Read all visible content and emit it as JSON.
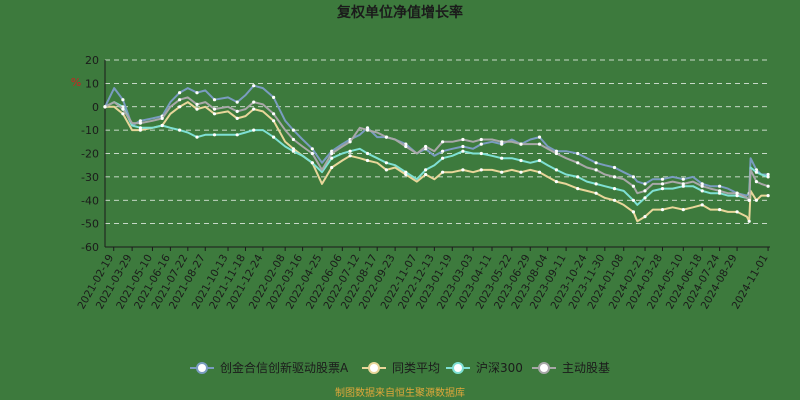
{
  "chart_data": {
    "type": "line",
    "title": "复权单位净值增长率",
    "ylabel": "%",
    "ylim": [
      -60,
      20
    ],
    "yticks": [
      20,
      10,
      0,
      -10,
      -20,
      -30,
      -40,
      -50,
      -60
    ],
    "x_range": [
      "2021-02-01",
      "2024-11-05"
    ],
    "x_ticks": [
      "2021-02-19",
      "2021-03-29",
      "2021-05-10",
      "2021-06-16",
      "2021-07-22",
      "2021-08-27",
      "2021-10-13",
      "2021-11-18",
      "2021-12-24",
      "2022-02-08",
      "2022-03-16",
      "2022-04-25",
      "2022-06-06",
      "2022-07-12",
      "2022-08-17",
      "2022-09-23",
      "2022-11-07",
      "2022-12-13",
      "2023-01-19",
      "2023-03-03",
      "2023-04-11",
      "2023-05-22",
      "2023-06-29",
      "2023-08-04",
      "2023-09-11",
      "2023-10-24",
      "2023-11-30",
      "2024-01-08",
      "2024-02-21",
      "2024-03-28",
      "2024-05-10",
      "2024-06-18",
      "2024-07-24",
      "2024-08-29",
      "2024-11-01"
    ],
    "grid": true,
    "legend_position": "bottom",
    "x": [
      "2021-02-01",
      "2021-02-20",
      "2021-03-10",
      "2021-03-29",
      "2021-04-15",
      "2021-05-10",
      "2021-05-30",
      "2021-06-16",
      "2021-07-05",
      "2021-07-22",
      "2021-08-10",
      "2021-08-27",
      "2021-09-15",
      "2021-10-13",
      "2021-11-01",
      "2021-11-18",
      "2021-12-05",
      "2021-12-24",
      "2022-01-15",
      "2022-02-08",
      "2022-02-25",
      "2022-03-16",
      "2022-04-05",
      "2022-04-25",
      "2022-05-15",
      "2022-06-06",
      "2022-06-22",
      "2022-07-12",
      "2022-07-28",
      "2022-08-17",
      "2022-09-05",
      "2022-09-23",
      "2022-10-15",
      "2022-11-07",
      "2022-11-25",
      "2022-12-13",
      "2022-12-30",
      "2023-01-19",
      "2023-02-10",
      "2023-03-03",
      "2023-03-20",
      "2023-04-11",
      "2023-05-01",
      "2023-05-22",
      "2023-06-10",
      "2023-06-29",
      "2023-07-18",
      "2023-08-04",
      "2023-08-22",
      "2023-09-11",
      "2023-10-05",
      "2023-10-24",
      "2023-11-12",
      "2023-11-30",
      "2023-12-20",
      "2024-01-08",
      "2024-01-28",
      "2024-02-05",
      "2024-02-21",
      "2024-03-08",
      "2024-03-28",
      "2024-04-18",
      "2024-05-10",
      "2024-05-30",
      "2024-06-18",
      "2024-07-05",
      "2024-07-24",
      "2024-08-10",
      "2024-08-29",
      "2024-09-18",
      "2024-09-23",
      "2024-09-26",
      "2024-10-08",
      "2024-10-18",
      "2024-11-01"
    ],
    "series": [
      {
        "name": "创金合信创新驱动股票A",
        "color": "#7a9cc0",
        "values": [
          0,
          8,
          3,
          -8,
          -6,
          -5,
          -4,
          2,
          6,
          8,
          6,
          7,
          3,
          4,
          2,
          5,
          9,
          8,
          4,
          -6,
          -10,
          -14,
          -18,
          -24,
          -19,
          -16,
          -14,
          -12,
          -9,
          -13,
          -13,
          -14,
          -16,
          -20,
          -18,
          -21,
          -19,
          -18,
          -17,
          -18,
          -16,
          -15,
          -16,
          -14,
          -16,
          -14,
          -13,
          -17,
          -19,
          -19,
          -20,
          -22,
          -24,
          -25,
          -26,
          -28,
          -30,
          -32,
          -33,
          -31,
          -31,
          -30,
          -31,
          -30,
          -33,
          -34,
          -34,
          -35,
          -37,
          -38,
          -37,
          -22,
          -27,
          -29,
          -29
        ]
      },
      {
        "name": "同类平均",
        "color": "#e8d69a",
        "values": [
          0,
          0,
          -3,
          -10,
          -10,
          -9,
          -8,
          -3,
          0,
          2,
          -1,
          0,
          -3,
          -2,
          -5,
          -4,
          -1,
          -2,
          -6,
          -15,
          -18,
          -21,
          -24,
          -33,
          -26,
          -23,
          -21,
          -22,
          -23,
          -24,
          -27,
          -26,
          -29,
          -32,
          -29,
          -31,
          -28,
          -28,
          -27,
          -28,
          -27,
          -27,
          -28,
          -27,
          -28,
          -27,
          -28,
          -30,
          -32,
          -33,
          -35,
          -36,
          -37,
          -39,
          -40,
          -42,
          -45,
          -49,
          -47,
          -44,
          -44,
          -43,
          -44,
          -43,
          -42,
          -44,
          -44,
          -45,
          -45,
          -47,
          -49,
          -36,
          -40,
          -38,
          -38
        ]
      },
      {
        "name": "沪深300",
        "color": "#7fe0d4",
        "values": [
          0,
          2,
          0,
          -8,
          -9,
          -9,
          -8,
          -9,
          -10,
          -11,
          -13,
          -12,
          -12,
          -12,
          -12,
          -11,
          -10,
          -10,
          -13,
          -17,
          -19,
          -21,
          -24,
          -28,
          -22,
          -20,
          -19,
          -18,
          -20,
          -22,
          -24,
          -25,
          -28,
          -31,
          -27,
          -25,
          -22,
          -21,
          -19,
          -20,
          -20,
          -21,
          -22,
          -22,
          -23,
          -24,
          -23,
          -25,
          -27,
          -29,
          -30,
          -32,
          -33,
          -34,
          -35,
          -36,
          -40,
          -42,
          -39,
          -36,
          -35,
          -35,
          -34,
          -34,
          -36,
          -37,
          -37,
          -38,
          -38,
          -39,
          -40,
          -26,
          -28,
          -29,
          -30
        ]
      },
      {
        "name": "主动股基",
        "color": "#a8a8a8",
        "values": [
          0,
          2,
          -1,
          -7,
          -7,
          -6,
          -5,
          0,
          3,
          4,
          1,
          2,
          -1,
          0,
          -2,
          -1,
          2,
          1,
          -3,
          -10,
          -14,
          -17,
          -20,
          -27,
          -20,
          -17,
          -15,
          -9,
          -10,
          -11,
          -13,
          -14,
          -17,
          -20,
          -17,
          -19,
          -15,
          -15,
          -14,
          -15,
          -14,
          -14,
          -15,
          -15,
          -16,
          -16,
          -16,
          -18,
          -20,
          -22,
          -24,
          -26,
          -27,
          -29,
          -30,
          -31,
          -34,
          -37,
          -36,
          -33,
          -33,
          -32,
          -33,
          -32,
          -34,
          -35,
          -36,
          -37,
          -37,
          -39,
          -40,
          -27,
          -32,
          -33,
          -34
        ]
      }
    ],
    "source": "制图数据来自恒生聚源数据库"
  }
}
